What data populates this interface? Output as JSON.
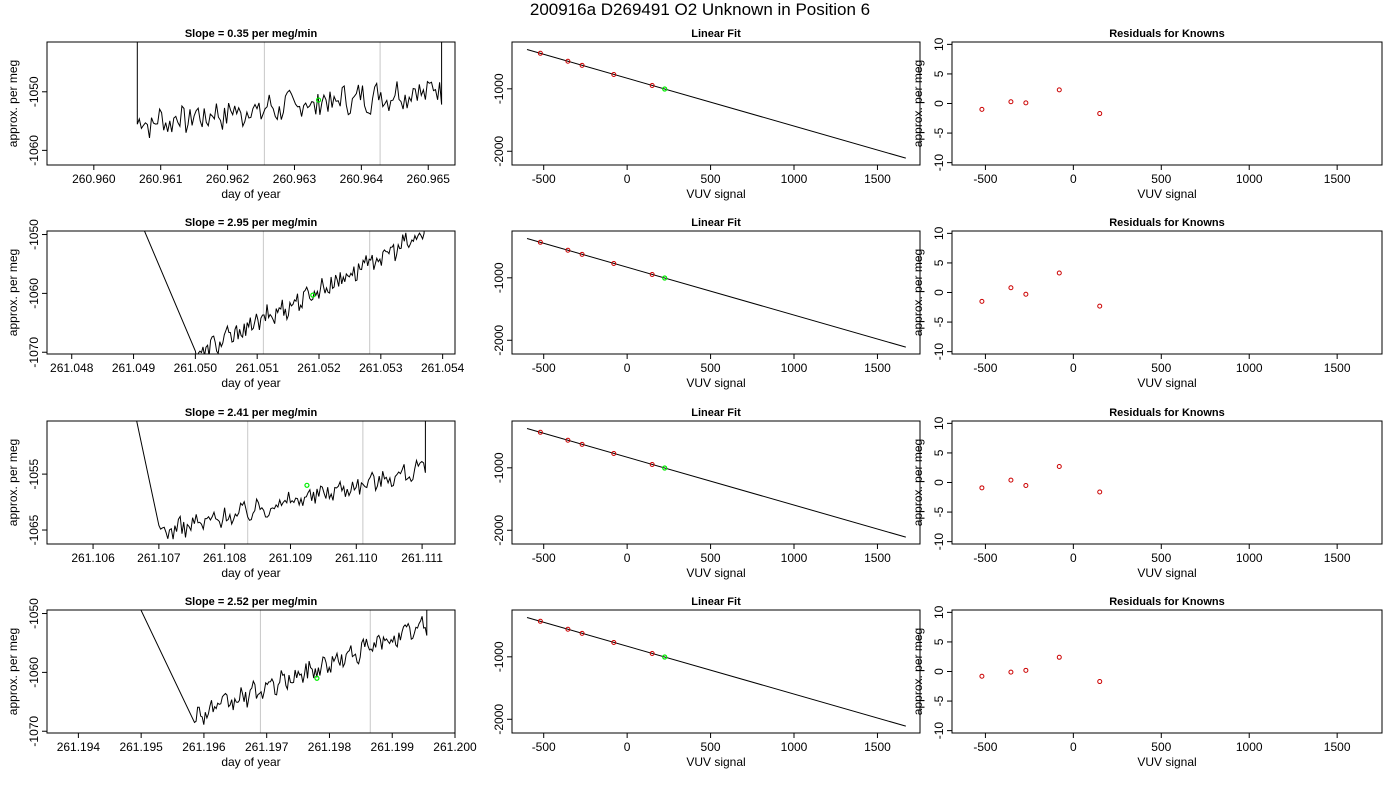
{
  "title": "200916a      D269491    O2 Unknown in Position  6",
  "colors": {
    "trace": "#000000",
    "guide": "#c8c8c8",
    "green": "#00ee00",
    "red": "#cc0000"
  },
  "chart_data": [
    {
      "type": "line",
      "panel": "time",
      "row": 0,
      "title": "Slope =  0.35  per meg/min",
      "xlabel": "day of year",
      "ylabel": "approx. per meg",
      "xlim": [
        260.9593,
        260.9654
      ],
      "ylim": [
        -1062.5,
        -1041.5
      ],
      "xticks": [
        260.96,
        260.961,
        260.962,
        260.963,
        260.964,
        260.965
      ],
      "xtick_labels": [
        "260.960",
        "260.961",
        "260.962",
        "260.963",
        "260.964",
        "260.965"
      ],
      "yticks": [
        -1060,
        -1050
      ],
      "ytick_labels": [
        "-1060",
        "-1050"
      ],
      "vlines": [
        260.96255,
        260.96428
      ],
      "marker": [
        260.96336,
        -1051.4
      ],
      "jump_from": [
        260.96065,
        -1037
      ],
      "jump_to": [
        260.9652,
        -1037
      ],
      "x_start": 260.96065,
      "x_end": 260.9652,
      "y_start": -1055.5,
      "y_end": -1049.5,
      "noise": 2.2
    },
    {
      "type": "line",
      "panel": "time",
      "row": 1,
      "title": "Slope =  2.95  per meg/min",
      "xlabel": "day of year",
      "ylabel": "approx. per meg",
      "xlim": [
        261.0476,
        261.0542
      ],
      "ylim": [
        -1070.3,
        -1049.4
      ],
      "xticks": [
        261.048,
        261.049,
        261.05,
        261.051,
        261.052,
        261.053,
        261.054
      ],
      "xtick_labels": [
        "261.048",
        "261.049",
        "261.050",
        "261.051",
        "261.052",
        "261.053",
        "261.054"
      ],
      "yticks": [
        -1070,
        -1060,
        -1050
      ],
      "ytick_labels": [
        "-1070",
        "-1060",
        "-1050"
      ],
      "vlines": [
        261.0511,
        261.05282
      ],
      "marker": [
        261.0519,
        -1060.3
      ],
      "jump_from": [
        261.049,
        -1045
      ],
      "jump_to": [
        261.0537,
        -1048
      ],
      "x_start": 261.05,
      "x_end": 261.0537,
      "y_start": -1070.5,
      "y_end": -1050,
      "noise": 1.6
    },
    {
      "type": "line",
      "panel": "time",
      "row": 2,
      "title": "Slope =  2.41  per meg/min",
      "xlabel": "day of year",
      "ylabel": "approx. per meg",
      "xlim": [
        261.1053,
        261.1115
      ],
      "ylim": [
        -1067.5,
        -1045.5
      ],
      "xticks": [
        261.106,
        261.107,
        261.108,
        261.109,
        261.11,
        261.111
      ],
      "xtick_labels": [
        "261.106",
        "261.107",
        "261.108",
        "261.109",
        "261.110",
        "261.111"
      ],
      "yticks": [
        -1065,
        -1055
      ],
      "ytick_labels": [
        "-1065",
        "-1055"
      ],
      "vlines": [
        261.10835,
        261.1101
      ],
      "marker": [
        261.10925,
        -1057.0
      ],
      "jump_from": [
        261.1066,
        -1042
      ],
      "jump_to": [
        261.11105,
        -1043
      ],
      "x_start": 261.107,
      "x_end": 261.11105,
      "y_start": -1065.5,
      "y_end": -1054,
      "noise": 1.5
    },
    {
      "type": "line",
      "panel": "time",
      "row": 3,
      "title": "Slope =  2.52  per meg/min",
      "xlabel": "day of year",
      "ylabel": "approx. per meg",
      "xlim": [
        261.1935,
        261.2
      ],
      "ylim": [
        -1070.3,
        -1049.4
      ],
      "xticks": [
        261.194,
        261.195,
        261.196,
        261.197,
        261.198,
        261.199,
        261.2
      ],
      "xtick_labels": [
        "261.194",
        "261.195",
        "261.196",
        "261.197",
        "261.198",
        "261.199",
        "261.200"
      ],
      "yticks": [
        -1070,
        -1060,
        -1050
      ],
      "ytick_labels": [
        "-1070",
        "-1060",
        "-1050"
      ],
      "vlines": [
        261.1969,
        261.19865
      ],
      "marker": [
        261.1978,
        -1061.0
      ],
      "jump_from": [
        261.1948,
        -1045
      ],
      "jump_to": [
        261.19955,
        -1048
      ],
      "x_start": 261.19585,
      "x_end": 261.19955,
      "y_start": -1067.5,
      "y_end": -1052,
      "noise": 1.5
    },
    {
      "type": "scatter",
      "panel": "fit",
      "row": 0,
      "title": "Linear Fit",
      "xlabel": "VUV signal",
      "ylabel": "",
      "xlim": [
        -690,
        1755
      ],
      "ylim": [
        -2220,
        -250
      ],
      "xticks": [
        -500,
        0,
        500,
        1000,
        1500
      ],
      "xtick_labels": [
        "-500",
        "0",
        "500",
        "1000",
        "1500"
      ],
      "yticks": [
        -2000,
        -1000
      ],
      "ytick_labels": [
        "-2000",
        "-1000"
      ],
      "line": [
        [
          -600,
          -370
        ],
        [
          1670,
          -2110
        ]
      ],
      "points": [
        [
          -520,
          -431
        ],
        [
          -355,
          -559
        ],
        [
          -270,
          -625
        ],
        [
          -80,
          -770
        ],
        [
          150,
          -947
        ]
      ],
      "green": [
        225,
        -1003
      ]
    },
    {
      "type": "scatter",
      "panel": "fit",
      "row": 1,
      "title": "Linear Fit",
      "xlabel": "VUV signal",
      "ylabel": "",
      "xlim": [
        -690,
        1755
      ],
      "ylim": [
        -2220,
        -250
      ],
      "xticks": [
        -500,
        0,
        500,
        1000,
        1500
      ],
      "xtick_labels": [
        "-500",
        "0",
        "500",
        "1000",
        "1500"
      ],
      "yticks": [
        -2000,
        -1000
      ],
      "ytick_labels": [
        "-2000",
        "-1000"
      ],
      "line": [
        [
          -600,
          -370
        ],
        [
          1670,
          -2110
        ]
      ],
      "points": [
        [
          -520,
          -431
        ],
        [
          -355,
          -559
        ],
        [
          -270,
          -625
        ],
        [
          -80,
          -770
        ],
        [
          150,
          -947
        ]
      ],
      "green": [
        225,
        -1003
      ]
    },
    {
      "type": "scatter",
      "panel": "fit",
      "row": 2,
      "title": "Linear Fit",
      "xlabel": "VUV signal",
      "ylabel": "",
      "xlim": [
        -690,
        1755
      ],
      "ylim": [
        -2220,
        -250
      ],
      "xticks": [
        -500,
        0,
        500,
        1000,
        1500
      ],
      "xtick_labels": [
        "-500",
        "0",
        "500",
        "1000",
        "1500"
      ],
      "yticks": [
        -2000,
        -1000
      ],
      "ytick_labels": [
        "-2000",
        "-1000"
      ],
      "line": [
        [
          -600,
          -370
        ],
        [
          1670,
          -2110
        ]
      ],
      "points": [
        [
          -520,
          -431
        ],
        [
          -355,
          -559
        ],
        [
          -270,
          -625
        ],
        [
          -80,
          -770
        ],
        [
          150,
          -947
        ]
      ],
      "green": [
        225,
        -1003
      ]
    },
    {
      "type": "scatter",
      "panel": "fit",
      "row": 3,
      "title": "Linear Fit",
      "xlabel": "VUV signal",
      "ylabel": "",
      "xlim": [
        -690,
        1755
      ],
      "ylim": [
        -2220,
        -250
      ],
      "xticks": [
        -500,
        0,
        500,
        1000,
        1500
      ],
      "xtick_labels": [
        "-500",
        "0",
        "500",
        "1000",
        "1500"
      ],
      "yticks": [
        -2000,
        -1000
      ],
      "ytick_labels": [
        "-2000",
        "-1000"
      ],
      "line": [
        [
          -600,
          -370
        ],
        [
          1670,
          -2110
        ]
      ],
      "points": [
        [
          -520,
          -431
        ],
        [
          -355,
          -559
        ],
        [
          -270,
          -625
        ],
        [
          -80,
          -770
        ],
        [
          150,
          -947
        ]
      ],
      "green": [
        225,
        -1003
      ]
    },
    {
      "type": "scatter",
      "panel": "resid",
      "row": 0,
      "title": "Residuals for Knowns",
      "xlabel": "VUV signal",
      "ylabel": "approx. per meg",
      "xlim": [
        -690,
        1755
      ],
      "ylim": [
        -10.4,
        10.4
      ],
      "xticks": [
        -500,
        0,
        500,
        1000,
        1500
      ],
      "xtick_labels": [
        "-500",
        "0",
        "500",
        "1000",
        "1500"
      ],
      "yticks": [
        -10,
        -5,
        0,
        5,
        10
      ],
      "ytick_labels": [
        "-10",
        "-5",
        "0",
        "5",
        "10"
      ],
      "points": [
        [
          -520,
          -1.0
        ],
        [
          -355,
          0.3
        ],
        [
          -270,
          0.1
        ],
        [
          -80,
          2.3
        ],
        [
          150,
          -1.7
        ]
      ]
    },
    {
      "type": "scatter",
      "panel": "resid",
      "row": 1,
      "title": "Residuals for Knowns",
      "xlabel": "VUV signal",
      "ylabel": "approx. per meg",
      "xlim": [
        -690,
        1755
      ],
      "ylim": [
        -10.4,
        10.4
      ],
      "xticks": [
        -500,
        0,
        500,
        1000,
        1500
      ],
      "xtick_labels": [
        "-500",
        "0",
        "500",
        "1000",
        "1500"
      ],
      "yticks": [
        -10,
        -5,
        0,
        5,
        10
      ],
      "ytick_labels": [
        "-10",
        "-5",
        "0",
        "5",
        "10"
      ],
      "points": [
        [
          -520,
          -1.5
        ],
        [
          -355,
          0.8
        ],
        [
          -270,
          -0.3
        ],
        [
          -80,
          3.3
        ],
        [
          150,
          -2.3
        ]
      ]
    },
    {
      "type": "scatter",
      "panel": "resid",
      "row": 2,
      "title": "Residuals for Knowns",
      "xlabel": "VUV signal",
      "ylabel": "approx. per meg",
      "xlim": [
        -690,
        1755
      ],
      "ylim": [
        -10.4,
        10.4
      ],
      "xticks": [
        -500,
        0,
        500,
        1000,
        1500
      ],
      "xtick_labels": [
        "-500",
        "0",
        "500",
        "1000",
        "1500"
      ],
      "yticks": [
        -10,
        -5,
        0,
        5,
        10
      ],
      "ytick_labels": [
        "-10",
        "-5",
        "0",
        "5",
        "10"
      ],
      "points": [
        [
          -520,
          -0.9
        ],
        [
          -355,
          0.4
        ],
        [
          -270,
          -0.5
        ],
        [
          -80,
          2.7
        ],
        [
          150,
          -1.6
        ]
      ]
    },
    {
      "type": "scatter",
      "panel": "resid",
      "row": 3,
      "title": "Residuals for Knowns",
      "xlabel": "VUV signal",
      "ylabel": "approx. per meg",
      "xlim": [
        -690,
        1755
      ],
      "ylim": [
        -10.4,
        10.4
      ],
      "xticks": [
        -500,
        0,
        500,
        1000,
        1500
      ],
      "xtick_labels": [
        "-500",
        "0",
        "500",
        "1000",
        "1500"
      ],
      "yticks": [
        -10,
        -5,
        0,
        5,
        10
      ],
      "ytick_labels": [
        "-10",
        "-5",
        "0",
        "5",
        "10"
      ],
      "points": [
        [
          -520,
          -0.8
        ],
        [
          -355,
          -0.1
        ],
        [
          -270,
          0.2
        ],
        [
          -80,
          2.4
        ],
        [
          150,
          -1.7
        ]
      ]
    }
  ]
}
